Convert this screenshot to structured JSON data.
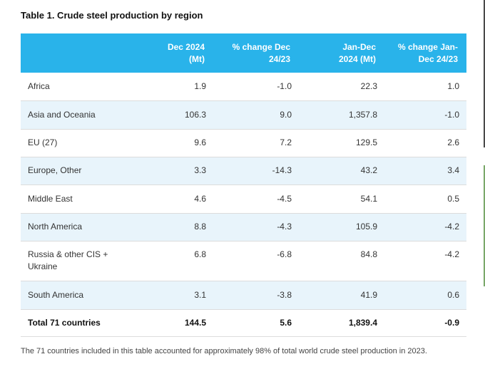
{
  "title": "Table 1. Crude steel production by region",
  "headers": {
    "c2_l1": "Dec 2024",
    "c2_l2": "(Mt)",
    "c3_l1": "% change Dec",
    "c3_l2": "24/23",
    "c4_l1": "Jan-Dec",
    "c4_l2": "2024 (Mt)",
    "c5_l1": "% change Jan-",
    "c5_l2": "Dec 24/23"
  },
  "rows": [
    {
      "region": "Africa",
      "dec": "1.9",
      "chg_dec": "-1.0",
      "ytd": "22.3",
      "chg_ytd": "1.0"
    },
    {
      "region": "Asia and Oceania",
      "dec": "106.3",
      "chg_dec": "9.0",
      "ytd": "1,357.8",
      "chg_ytd": "-1.0"
    },
    {
      "region": "EU (27)",
      "dec": "9.6",
      "chg_dec": "7.2",
      "ytd": "129.5",
      "chg_ytd": "2.6"
    },
    {
      "region": "Europe, Other",
      "dec": "3.3",
      "chg_dec": "-14.3",
      "ytd": "43.2",
      "chg_ytd": "3.4"
    },
    {
      "region": "Middle East",
      "dec": "4.6",
      "chg_dec": "-4.5",
      "ytd": "54.1",
      "chg_ytd": "0.5"
    },
    {
      "region": "North America",
      "dec": "8.8",
      "chg_dec": "-4.3",
      "ytd": "105.9",
      "chg_ytd": "-4.2"
    },
    {
      "region_l1": "Russia & other CIS +",
      "region_l2": "Ukraine",
      "dec": "6.8",
      "chg_dec": "-6.8",
      "ytd": "84.8",
      "chg_ytd": "-4.2"
    },
    {
      "region": "South America",
      "dec": "3.1",
      "chg_dec": "-3.8",
      "ytd": "41.9",
      "chg_ytd": "0.6"
    }
  ],
  "total": {
    "region": "Total 71 countries",
    "dec": "144.5",
    "chg_dec": "5.6",
    "ytd": "1,839.4",
    "chg_ytd": "-0.9"
  },
  "note": "The 71 countries included in this table accounted for approximately 98% of total world crude steel production in 2023.",
  "colors": {
    "header_bg": "#29b3ea",
    "alt_row_bg": "#e8f4fb"
  }
}
